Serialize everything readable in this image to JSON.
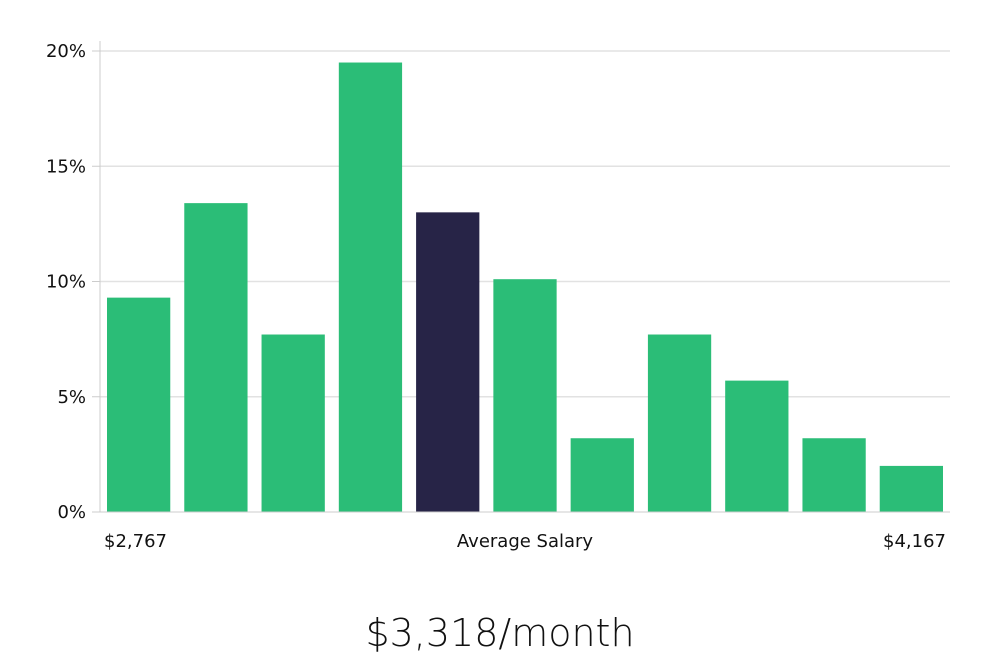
{
  "chart_data": {
    "type": "bar",
    "categories": [
      "",
      "",
      "",
      "",
      "",
      "",
      "",
      "",
      "",
      "",
      ""
    ],
    "values": [
      9.3,
      13.4,
      7.7,
      19.5,
      13.0,
      10.1,
      3.2,
      7.7,
      5.7,
      3.2,
      2.0
    ],
    "highlight_index": 4,
    "ylim": [
      0,
      20
    ],
    "yticks": [
      0,
      5,
      10,
      15,
      20
    ],
    "ytick_labels": [
      "0%",
      "5%",
      "10%",
      "15%",
      "20%"
    ],
    "grid": true,
    "x_left_label": "$2,767",
    "x_center_label": "Average Salary",
    "x_right_label": "$4,167",
    "colors": {
      "bar": "#2bbd77",
      "highlight": "#272447",
      "grid": "#e2e2e2",
      "axis": "#cccccc"
    }
  },
  "headline": "$3,318/month"
}
